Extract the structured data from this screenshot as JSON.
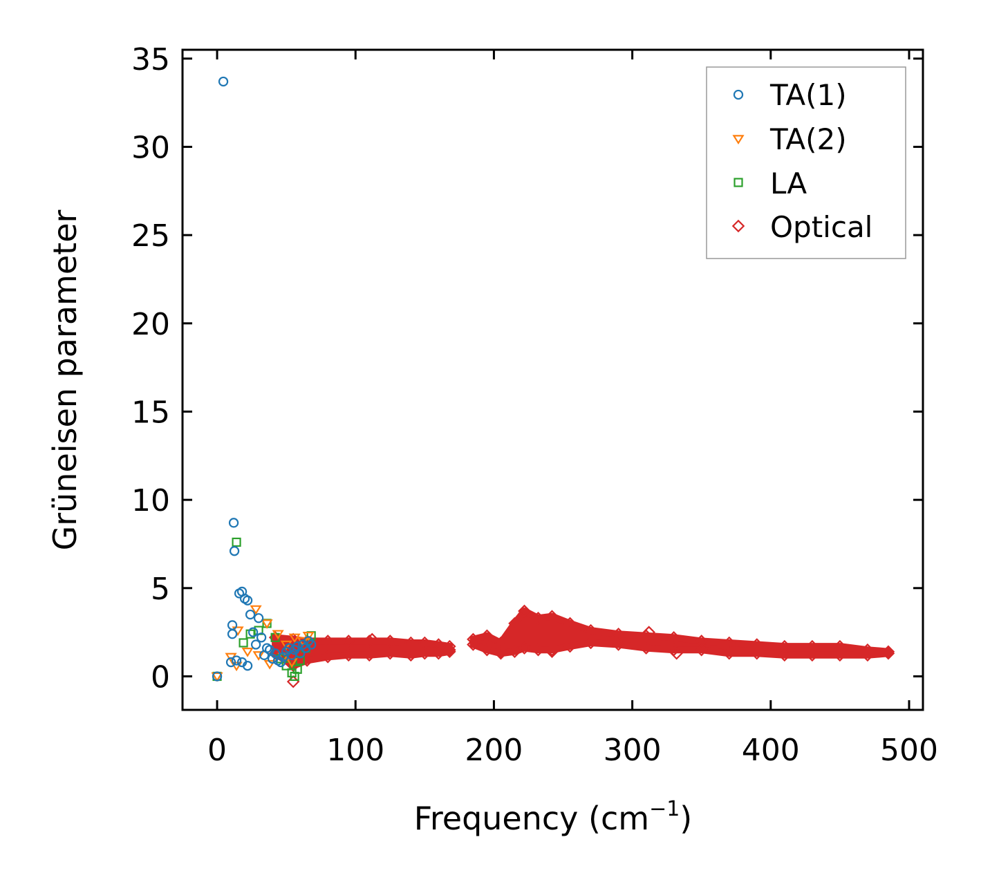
{
  "chart_data": {
    "type": "scatter",
    "title": "",
    "xlabel": "Frequency (cm",
    "xlabel_sup": "−1",
    "xlabel_close": ")",
    "ylabel": "Grüneisen parameter",
    "xlim": [
      -25,
      510
    ],
    "ylim": [
      -1.9,
      35.5
    ],
    "x_ticks": [
      0,
      100,
      200,
      300,
      400,
      500
    ],
    "y_ticks": [
      0,
      5,
      10,
      15,
      20,
      25,
      30,
      35
    ],
    "legend_position": "top-right",
    "series": [
      {
        "name": "TA(1)",
        "marker": "circle",
        "color": "#1f77b4",
        "points": [
          [
            4.5,
            33.7
          ],
          [
            12,
            8.7
          ],
          [
            12.5,
            7.1
          ],
          [
            16,
            4.7
          ],
          [
            18,
            4.8
          ],
          [
            20,
            4.4
          ],
          [
            22,
            4.3
          ],
          [
            24,
            3.5
          ],
          [
            11,
            2.9
          ],
          [
            11,
            2.4
          ],
          [
            10,
            0.8
          ],
          [
            14,
            0.9
          ],
          [
            18,
            0.8
          ],
          [
            22,
            0.6
          ],
          [
            26,
            2.5
          ],
          [
            28,
            1.8
          ],
          [
            30,
            3.3
          ],
          [
            32,
            2.2
          ],
          [
            34,
            1.2
          ],
          [
            36,
            1.6
          ],
          [
            38,
            1.5
          ],
          [
            40,
            1.0
          ],
          [
            42,
            1.3
          ],
          [
            44,
            0.9
          ],
          [
            46,
            0.8
          ],
          [
            48,
            1.1
          ],
          [
            50,
            1.4
          ],
          [
            52,
            1.6
          ],
          [
            54,
            1.2
          ],
          [
            56,
            1.5
          ],
          [
            58,
            1.7
          ],
          [
            60,
            1.3
          ],
          [
            62,
            1.8
          ],
          [
            64,
            1.6
          ],
          [
            66,
            2.0
          ],
          [
            68,
            1.8
          ],
          [
            0,
            0.0
          ]
        ]
      },
      {
        "name": "TA(2)",
        "marker": "triangle-down",
        "color": "#ff7f0e",
        "points": [
          [
            15,
            2.6
          ],
          [
            28,
            3.8
          ],
          [
            36,
            3.0
          ],
          [
            10,
            1.1
          ],
          [
            14,
            0.6
          ],
          [
            22,
            1.4
          ],
          [
            30,
            1.2
          ],
          [
            38,
            0.7
          ],
          [
            44,
            2.4
          ],
          [
            50,
            1.8
          ],
          [
            56,
            2.2
          ],
          [
            62,
            2.0
          ],
          [
            66,
            2.3
          ],
          [
            48,
            1.1
          ],
          [
            54,
            0.8
          ],
          [
            0,
            0.0
          ]
        ]
      },
      {
        "name": "LA",
        "marker": "square",
        "color": "#2ca02c",
        "points": [
          [
            14,
            7.6
          ],
          [
            19,
            1.9
          ],
          [
            24,
            2.4
          ],
          [
            30,
            2.6
          ],
          [
            36,
            3.0
          ],
          [
            42,
            2.2
          ],
          [
            46,
            1.0
          ],
          [
            50,
            0.6
          ],
          [
            54,
            0.2
          ],
          [
            56,
            0.0
          ],
          [
            58,
            0.4
          ],
          [
            60,
            0.9
          ],
          [
            64,
            1.6
          ],
          [
            68,
            2.3
          ],
          [
            0,
            0.0
          ]
        ]
      },
      {
        "name": "Optical",
        "marker": "diamond",
        "color": "#d62728",
        "bands": [
          [
            42,
            1.3,
            2.2
          ],
          [
            55,
            0.6,
            2.1
          ],
          [
            65,
            0.9,
            2.0
          ],
          [
            80,
            1.1,
            2.0
          ],
          [
            95,
            1.2,
            2.0
          ],
          [
            110,
            1.2,
            2.0
          ],
          [
            125,
            1.3,
            2.0
          ],
          [
            140,
            1.2,
            1.9
          ],
          [
            150,
            1.3,
            1.9
          ],
          [
            160,
            1.3,
            1.8
          ],
          [
            168,
            1.4,
            1.7
          ],
          [
            185,
            1.8,
            2.1
          ],
          [
            195,
            1.5,
            2.3
          ],
          [
            205,
            1.3,
            1.9
          ],
          [
            215,
            1.4,
            3.0
          ],
          [
            222,
            1.6,
            3.7
          ],
          [
            232,
            1.5,
            3.3
          ],
          [
            242,
            1.5,
            3.4
          ],
          [
            255,
            1.7,
            3.0
          ],
          [
            270,
            1.9,
            2.6
          ],
          [
            290,
            1.8,
            2.4
          ],
          [
            310,
            1.6,
            2.3
          ],
          [
            330,
            1.5,
            2.2
          ],
          [
            350,
            1.5,
            2.0
          ],
          [
            370,
            1.3,
            1.9
          ],
          [
            390,
            1.3,
            1.8
          ],
          [
            410,
            1.2,
            1.7
          ],
          [
            430,
            1.2,
            1.7
          ],
          [
            450,
            1.2,
            1.7
          ],
          [
            470,
            1.2,
            1.5
          ],
          [
            485,
            1.3,
            1.4
          ]
        ],
        "points": [
          [
            55,
            -0.3
          ],
          [
            112,
            2.1
          ],
          [
            222,
            3.7
          ],
          [
            312,
            2.5
          ],
          [
            332,
            1.3
          ],
          [
            242,
            1.4
          ],
          [
            205,
            1.4
          ],
          [
            168,
            1.5
          ]
        ]
      }
    ]
  }
}
